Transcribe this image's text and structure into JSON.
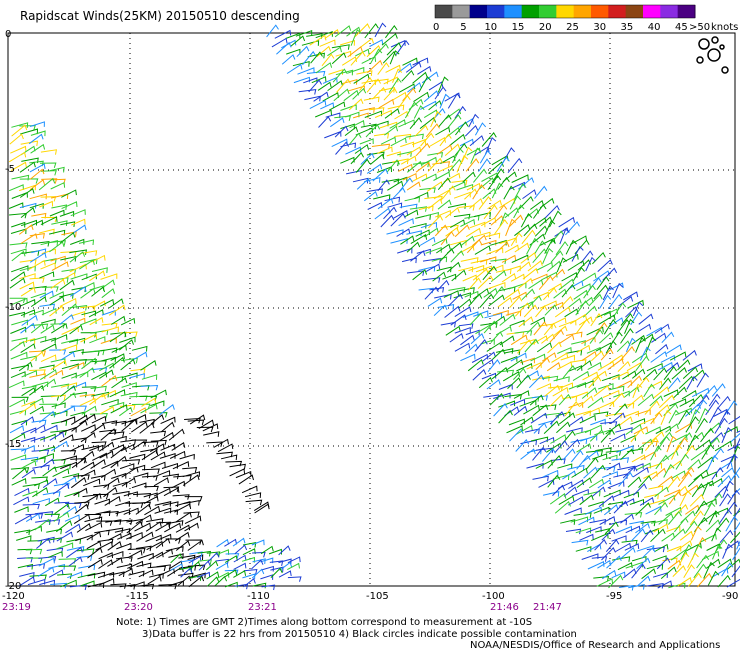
{
  "title": "Rapidscat Winds(25KM) 20150510 descending",
  "colorbar": {
    "colors": [
      "#4a4a4a",
      "#9a9a9a",
      "#00008b",
      "#1c3cd4",
      "#1e90ff",
      "#00a000",
      "#32cd32",
      "#ffd700",
      "#ffa500",
      "#ff5a00",
      "#d21e1e",
      "#8b4513",
      "#ff00ff",
      "#8a2be2",
      "#4b0082"
    ],
    "labels": [
      "0",
      "5",
      "10",
      "15",
      "20",
      "25",
      "30",
      "35",
      "40",
      "45"
    ],
    "max_label": ">50",
    "unit": "knots"
  },
  "axes": {
    "lon_labels": [
      "-120",
      "-115",
      "-110",
      "-105",
      "-100",
      "-95",
      "-90"
    ],
    "lat_labels": [
      "0",
      "-5",
      "-10",
      "-15",
      "-20"
    ]
  },
  "times": [
    "23:19",
    "23:20",
    "23:21",
    "21:46",
    "21:47"
  ],
  "notes": {
    "line1": "Note: 1) Times are GMT 2)Times along bottom correspond to measurement at -10S",
    "line2": "3)Data buffer is 22 hrs from 20150510 4) Black circles indicate possible contamination",
    "credit": "NOAA/NESDIS/Office of Research and Applications"
  }
}
